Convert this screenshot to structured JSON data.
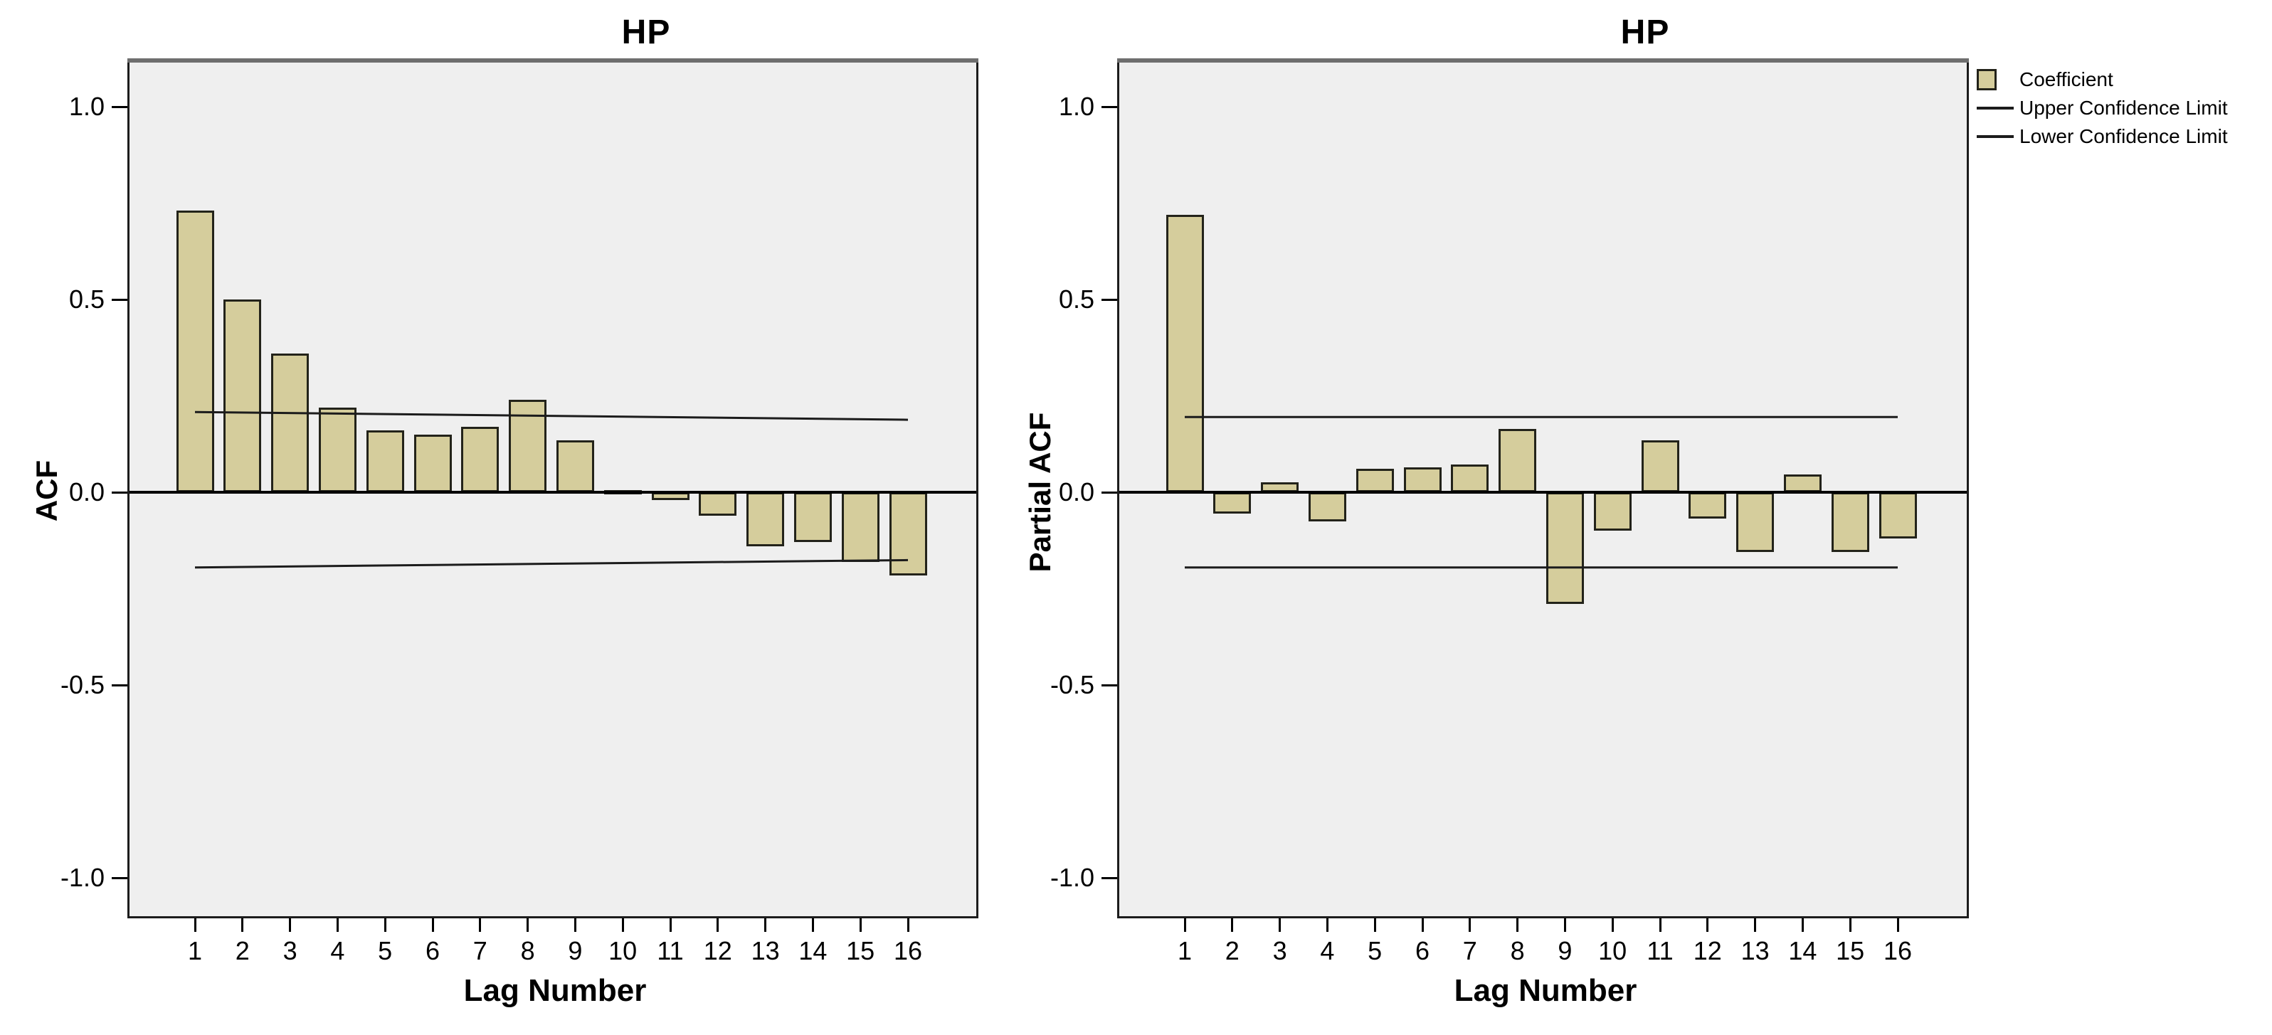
{
  "figure": {
    "background_color": "#ffffff",
    "plot_background_color": "#efefef",
    "bar_fill_color": "#d5cd9c",
    "bar_border_color": "#23231a",
    "axis_line_color": "#000000",
    "confidence_line_color": "#1c1c1c",
    "frame_top_color": "#6e6e6e",
    "frame_color": "#1c1c1c"
  },
  "legend": {
    "items": [
      {
        "label": "Coefficient",
        "swatch": "box-icon"
      },
      {
        "label": "Upper Confidence Limit",
        "swatch": "line-icon"
      },
      {
        "label": "Lower Confidence Limit",
        "swatch": "line-icon"
      }
    ],
    "position": "right-of-second-chart"
  },
  "chart_data": [
    {
      "type": "bar",
      "title": "HP",
      "xlabel": "Lag Number",
      "ylabel": "ACF",
      "categories": [
        1,
        2,
        3,
        4,
        5,
        6,
        7,
        8,
        9,
        10,
        11,
        12,
        13,
        14,
        15,
        16
      ],
      "values": [
        0.73,
        0.5,
        0.36,
        0.22,
        0.16,
        0.15,
        0.17,
        0.24,
        0.135,
        0.005,
        -0.02,
        -0.06,
        -0.14,
        -0.13,
        -0.18,
        -0.215
      ],
      "upper_confidence_limit": {
        "start": 0.208,
        "end": 0.188
      },
      "lower_confidence_limit": {
        "start": -0.195,
        "end": -0.176
      },
      "yticks": [
        1.0,
        0.5,
        0.0,
        -0.5,
        -1.0
      ],
      "ytick_labels": [
        "1.0",
        "0.5",
        "0.0",
        "-0.5",
        "-1.0"
      ],
      "ylim": [
        -1.1,
        1.11
      ],
      "grid": false
    },
    {
      "type": "bar",
      "title": "HP",
      "xlabel": "Lag Number",
      "ylabel": "Partial ACF",
      "categories": [
        1,
        2,
        3,
        4,
        5,
        6,
        7,
        8,
        9,
        10,
        11,
        12,
        13,
        14,
        15,
        16
      ],
      "values": [
        0.72,
        -0.055,
        0.025,
        -0.075,
        0.06,
        0.065,
        0.072,
        0.165,
        -0.29,
        -0.1,
        0.135,
        -0.068,
        -0.155,
        0.046,
        -0.155,
        -0.12
      ],
      "upper_confidence_limit": {
        "start": 0.195,
        "end": 0.195
      },
      "lower_confidence_limit": {
        "start": -0.195,
        "end": -0.195
      },
      "yticks": [
        1.0,
        0.5,
        0.0,
        -0.5,
        -1.0
      ],
      "ytick_labels": [
        "1.0",
        "0.5",
        "0.0",
        "-0.5",
        "-1.0"
      ],
      "ylim": [
        -1.1,
        1.11
      ],
      "grid": false
    }
  ]
}
